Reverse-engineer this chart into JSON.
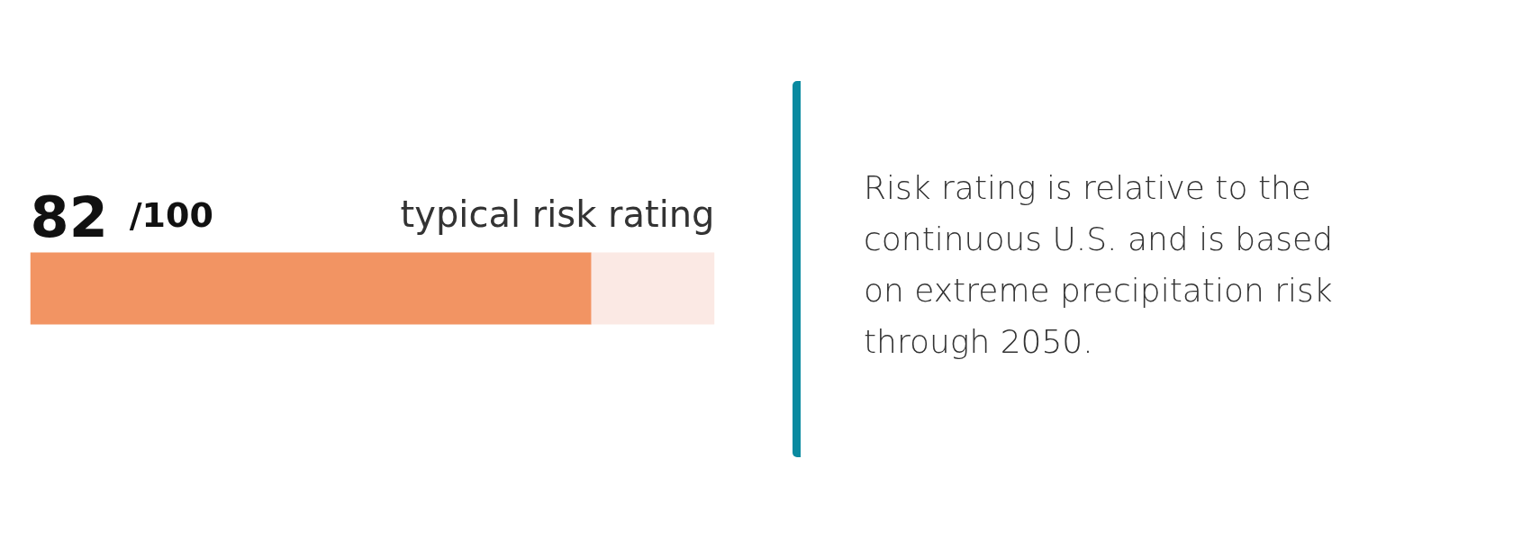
{
  "chart_data": {
    "type": "bar",
    "orientation": "horizontal",
    "stacked": true,
    "title": "typical risk rating",
    "categories": [
      null
    ],
    "series": [
      {
        "color": "#f29463",
        "values": [
          82
        ],
        "value_labels": [
          "82 /100"
        ]
      },
      {
        "color": "#fbe9e4",
        "values": [
          18
        ]
      }
    ],
    "xlim": [
      0,
      100
    ],
    "tick_labels": false,
    "grid": false,
    "annotations": [
      "Risk rating is relative to the continuous U.S. and is based on extreme precipitation risk through 2050."
    ]
  }
}
